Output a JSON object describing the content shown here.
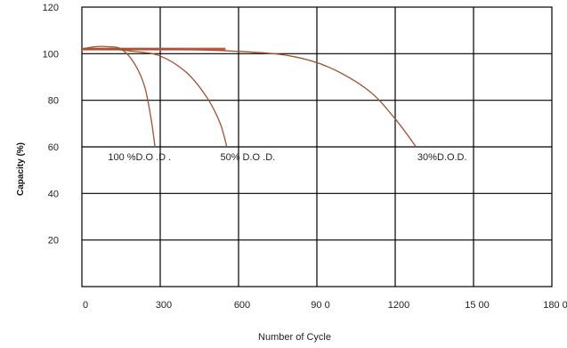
{
  "chart_data": {
    "type": "line",
    "xlabel": "Number of Cycle",
    "ylabel": "Capacity (%)",
    "xlim": [
      0,
      1800
    ],
    "ylim": [
      0,
      120
    ],
    "x_ticks": [
      0,
      300,
      600,
      900,
      1200,
      1500,
      1800
    ],
    "x_tick_labels": [
      "0",
      "300",
      "600",
      "90 0",
      "1200",
      "15 00",
      "180 0"
    ],
    "y_ticks": [
      20,
      40,
      60,
      80,
      100,
      120
    ],
    "y_tick_labels": [
      "20",
      "40",
      "60",
      "80",
      "100",
      "120"
    ],
    "grid": true,
    "colors": {
      "line": "#a0522d",
      "grid": "#000000",
      "band": "#c8553a"
    },
    "series": [
      {
        "name": "100 %D.O .D .",
        "x": [
          0,
          50,
          100,
          150,
          200,
          240,
          265,
          280
        ],
        "y": [
          102,
          103,
          103,
          102,
          96,
          86,
          72,
          60
        ]
      },
      {
        "name": "50% D.O .D.",
        "x": [
          0,
          100,
          200,
          300,
          400,
          480,
          530,
          555
        ],
        "y": [
          102,
          102,
          101,
          99,
          92,
          81,
          70,
          60
        ]
      },
      {
        "name": "30%D.O.D.",
        "x": [
          0,
          300,
          600,
          800,
          950,
          1100,
          1200,
          1280
        ],
        "y": [
          102,
          102,
          101,
          99,
          94,
          84,
          72,
          60
        ]
      }
    ],
    "annotations": [
      {
        "text": "100 %D.O .D .",
        "x": 100,
        "y": 58
      },
      {
        "text": "50% D.O .D.",
        "x": 530,
        "y": 58
      },
      {
        "text": "30%D.O.D.",
        "x": 1285,
        "y": 58
      }
    ],
    "plateau_band": {
      "x": [
        0,
        550
      ],
      "y": 102
    }
  }
}
